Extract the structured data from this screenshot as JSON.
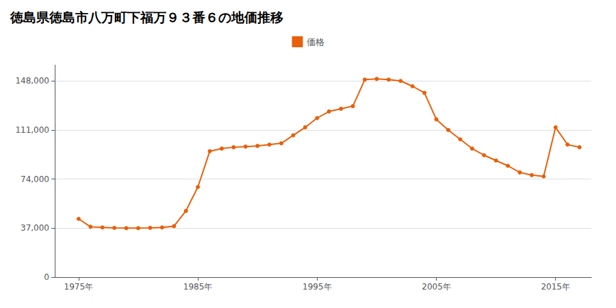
{
  "chart_data": {
    "type": "line",
    "title": "徳島県徳島市八万町下福万９３番６の地価推移",
    "x": [
      1975,
      1976,
      1977,
      1978,
      1979,
      1980,
      1981,
      1982,
      1983,
      1984,
      1985,
      1986,
      1987,
      1988,
      1989,
      1990,
      1991,
      1992,
      1993,
      1994,
      1995,
      1996,
      1997,
      1998,
      1999,
      2000,
      2001,
      2002,
      2003,
      2004,
      2005,
      2006,
      2007,
      2008,
      2009,
      2010,
      2011,
      2012,
      2013,
      2014,
      2015,
      2016,
      2017
    ],
    "series": [
      {
        "name": "価格",
        "color": "#e8600a",
        "marker": "circle",
        "values": [
          44000,
          38000,
          37500,
          37200,
          37000,
          37000,
          37200,
          37500,
          38500,
          50000,
          68000,
          95000,
          97000,
          98000,
          98500,
          99000,
          100000,
          101000,
          107000,
          113000,
          120000,
          125000,
          127000,
          129000,
          149000,
          149500,
          149000,
          148000,
          144000,
          139000,
          119000,
          111000,
          104000,
          97000,
          92000,
          88000,
          84000,
          79000,
          77000,
          76000,
          113000,
          100000,
          98000
        ]
      }
    ],
    "xlim": [
      1973,
      2018
    ],
    "xticks": [
      {
        "value": 1975,
        "label": "1975年"
      },
      {
        "value": 1985,
        "label": "1985年"
      },
      {
        "value": 1995,
        "label": "1995年"
      },
      {
        "value": 2005,
        "label": "2005年"
      },
      {
        "value": 2015,
        "label": "2015年"
      }
    ],
    "ylim": [
      0,
      160000
    ],
    "yticks": [
      0,
      {
        "value": 37000,
        "label": "37,000"
      },
      {
        "value": 74000,
        "label": "74,000"
      },
      {
        "value": 111000,
        "label": "111,000"
      },
      {
        "value": 148000,
        "label": "148,000"
      }
    ],
    "grid": "y",
    "legend": "top"
  }
}
